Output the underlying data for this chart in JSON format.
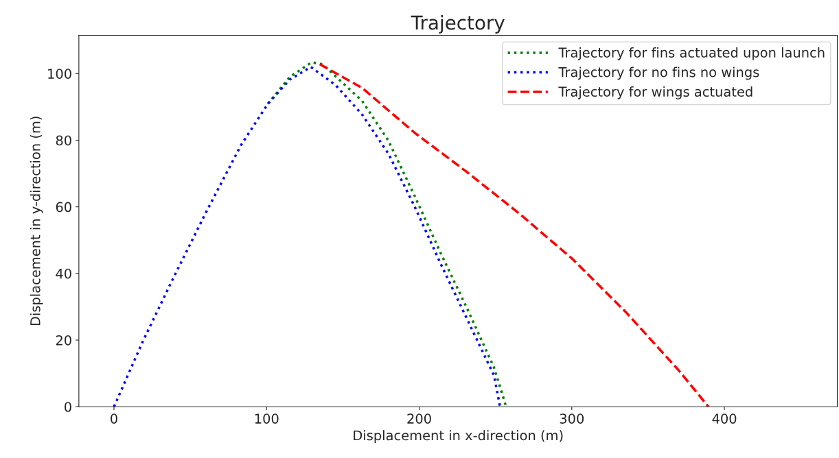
{
  "chart_data": {
    "type": "line",
    "title": "Trajectory",
    "xlabel": "Displacement in x-direction (m)",
    "ylabel": "Displacement in y-direction (m)",
    "xlim": [
      -23,
      474
    ],
    "ylim": [
      0,
      111.5
    ],
    "xticks": [
      0,
      100,
      200,
      300,
      400
    ],
    "yticks": [
      0,
      20,
      40,
      60,
      80,
      100
    ],
    "grid": false,
    "legend": "top right",
    "series": [
      {
        "name": "Trajectory for fins actuated upon launch",
        "color": "#008000",
        "line_style": "dotted",
        "x": [
          100.8,
          115.2,
          129.6,
          136.6,
          162.6,
          179.9,
          197.1,
          214.4,
          231.7,
          249,
          257
        ],
        "values": [
          90.9,
          99.0,
          103.4,
          102.8,
          91.8,
          79.8,
          63.2,
          45.8,
          29.2,
          11.8,
          0
        ]
      },
      {
        "name": "Trajectory for no fins no wings",
        "color": "#0000ff",
        "line_style": "dotted",
        "x": [
          0,
          18.9,
          38.2,
          60.6,
          83.1,
          100.8,
          115.2,
          129,
          145.3,
          162.6,
          179.9,
          197.1,
          214.4,
          231.7,
          249,
          253
        ],
        "values": [
          0,
          19.6,
          38.0,
          58.6,
          78.4,
          90.9,
          98.2,
          102,
          96.5,
          87.7,
          75.9,
          60,
          42.6,
          26,
          9.4,
          0
        ]
      },
      {
        "name": "Trajectory for wings actuated",
        "color": "#ff0000",
        "line_style": "dashed",
        "x": [
          134.9,
          162.6,
          197.1,
          231.7,
          266.3,
          300.8,
          335.4,
          369.9,
          389.5
        ],
        "values": [
          102.8,
          95.7,
          82.2,
          70.3,
          57.7,
          44.2,
          28.4,
          11,
          0
        ]
      }
    ]
  }
}
